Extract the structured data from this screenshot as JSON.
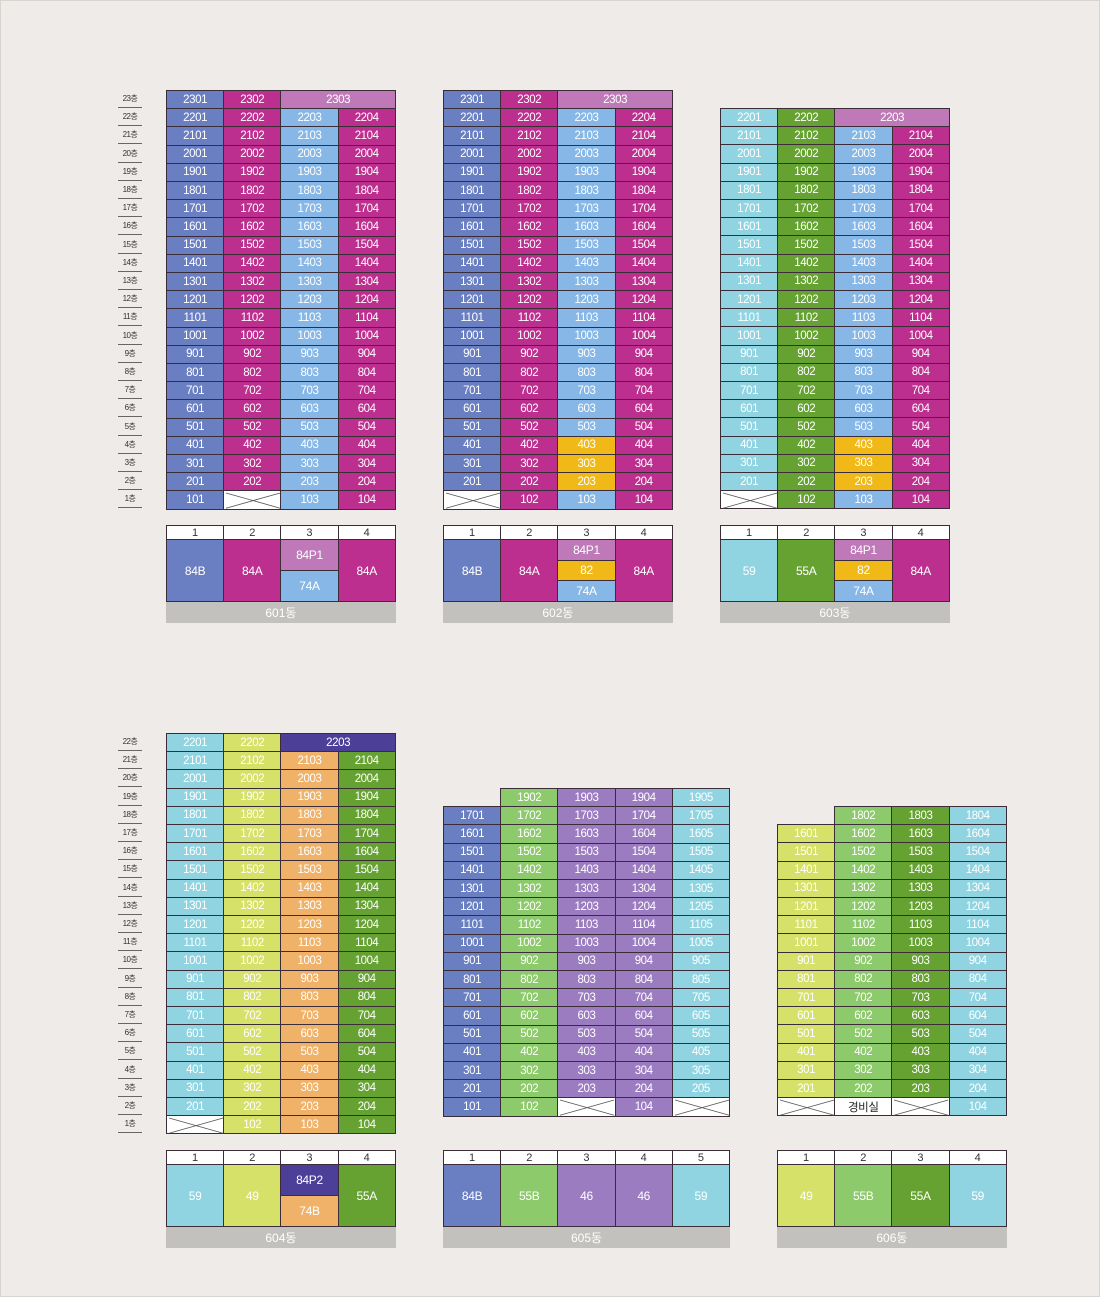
{
  "colors": {
    "84B": "#6a7fc2",
    "84A": "#bd2f8f",
    "74A": "#86b7e6",
    "84P1": "#bf79b8",
    "82": "#f0b917",
    "59": "#90d4e2",
    "55A": "#66a232",
    "49": "#d6e169",
    "74B": "#f0b269",
    "84P2": "#4b3f98",
    "55B": "#8dca6b",
    "46": "#9c7cc0",
    "void": "#ffffff"
  },
  "floor_columns": [
    {
      "id": "top",
      "labels": [
        "23층",
        "22층",
        "21층",
        "20층",
        "19층",
        "18층",
        "17층",
        "16층",
        "15층",
        "14층",
        "13층",
        "12층",
        "11층",
        "10층",
        "9층",
        "8층",
        "7층",
        "6층",
        "5층",
        "4층",
        "3층",
        "2층",
        "1층"
      ]
    },
    {
      "id": "bottom",
      "labels": [
        "22층",
        "21층",
        "20층",
        "19층",
        "18층",
        "17층",
        "16층",
        "15층",
        "14층",
        "13층",
        "12층",
        "11층",
        "10층",
        "9층",
        "8층",
        "7층",
        "6층",
        "5층",
        "4층",
        "3층",
        "2층",
        "1층"
      ]
    }
  ],
  "buildings": [
    {
      "name": "601동",
      "line_numbers": [
        "1",
        "2",
        "3",
        "4"
      ],
      "types": [
        [
          "84B"
        ],
        [
          "84A"
        ],
        [
          "84P1",
          "74A"
        ],
        [
          "84A"
        ]
      ],
      "penthouse": [
        {
          "label": "2301",
          "type": "84B",
          "span": 1
        },
        {
          "label": "2302",
          "type": "84A",
          "span": 1
        },
        {
          "label": "2303",
          "type": "84P1",
          "span": 2
        }
      ],
      "column_types": [
        "84B",
        "84A",
        "74A",
        "84A"
      ],
      "top_floor": 22,
      "first_floor": [
        "101",
        "X",
        "103",
        "104"
      ],
      "overrides": {}
    },
    {
      "name": "602동",
      "line_numbers": [
        "1",
        "2",
        "3",
        "4"
      ],
      "types": [
        [
          "84B"
        ],
        [
          "84A"
        ],
        [
          "84P1",
          "82",
          "74A"
        ],
        [
          "84A"
        ]
      ],
      "penthouse": [
        {
          "label": "2301",
          "type": "84B",
          "span": 1
        },
        {
          "label": "2302",
          "type": "84A",
          "span": 1
        },
        {
          "label": "2303",
          "type": "84P1",
          "span": 2
        }
      ],
      "column_types": [
        "84B",
        "84A",
        "74A",
        "84A"
      ],
      "top_floor": 22,
      "first_floor": [
        "X",
        "102",
        "103",
        "104"
      ],
      "overrides": {
        "403": "82",
        "303": "82",
        "203": "82"
      }
    },
    {
      "name": "603동",
      "line_numbers": [
        "1",
        "2",
        "3",
        "4"
      ],
      "types": [
        [
          "59"
        ],
        [
          "55A"
        ],
        [
          "84P1",
          "82",
          "74A"
        ],
        [
          "84A"
        ]
      ],
      "penthouse": [
        {
          "label": "2201",
          "type": "59",
          "span": 1
        },
        {
          "label": "2202",
          "type": "55A",
          "span": 1
        },
        {
          "label": "2203",
          "type": "84P1",
          "span": 2
        }
      ],
      "column_types": [
        "59",
        "55A",
        "74A",
        "84A"
      ],
      "top_floor": 21,
      "first_floor": [
        "X",
        "102",
        "103",
        "104"
      ],
      "overrides": {
        "403": "82",
        "303": "82",
        "203": "82"
      }
    },
    {
      "name": "604동",
      "line_numbers": [
        "1",
        "2",
        "3",
        "4"
      ],
      "types": [
        [
          "59"
        ],
        [
          "49"
        ],
        [
          "84P2",
          "74B"
        ],
        [
          "55A"
        ]
      ],
      "penthouse": [
        {
          "label": "2201",
          "type": "59",
          "span": 1
        },
        {
          "label": "2202",
          "type": "49",
          "span": 1
        },
        {
          "label": "2203",
          "type": "84P2",
          "span": 2
        }
      ],
      "column_types": [
        "59",
        "49",
        "74B",
        "55A"
      ],
      "top_floor": 21,
      "first_floor": [
        "X",
        "102",
        "103",
        "104"
      ],
      "overrides": {}
    },
    {
      "name": "605동",
      "line_numbers": [
        "1",
        "2",
        "3",
        "4",
        "5"
      ],
      "types": [
        [
          "84B"
        ],
        [
          "55B"
        ],
        [
          "46"
        ],
        [
          "46"
        ],
        [
          "59"
        ]
      ],
      "top_row": [
        "",
        "1902",
        "1903",
        "1904",
        "1905"
      ],
      "column_types": [
        "84B",
        "55B",
        "46",
        "46",
        "59"
      ],
      "top_floor": 18,
      "first_floor": [
        "101",
        "102",
        "X",
        "104",
        "X"
      ],
      "overrides": {}
    },
    {
      "name": "606동",
      "line_numbers": [
        "1",
        "2",
        "3",
        "4"
      ],
      "types": [
        [
          "49"
        ],
        [
          "55B"
        ],
        [
          "55A"
        ],
        [
          "59"
        ]
      ],
      "top_row": [
        "",
        "1802",
        "1803",
        "1804"
      ],
      "column_types": [
        "49",
        "55B",
        "55A",
        "59"
      ],
      "top_floor": 17,
      "first_floor": [
        "X",
        "경비실",
        "X",
        "104"
      ],
      "overrides": {}
    }
  ]
}
